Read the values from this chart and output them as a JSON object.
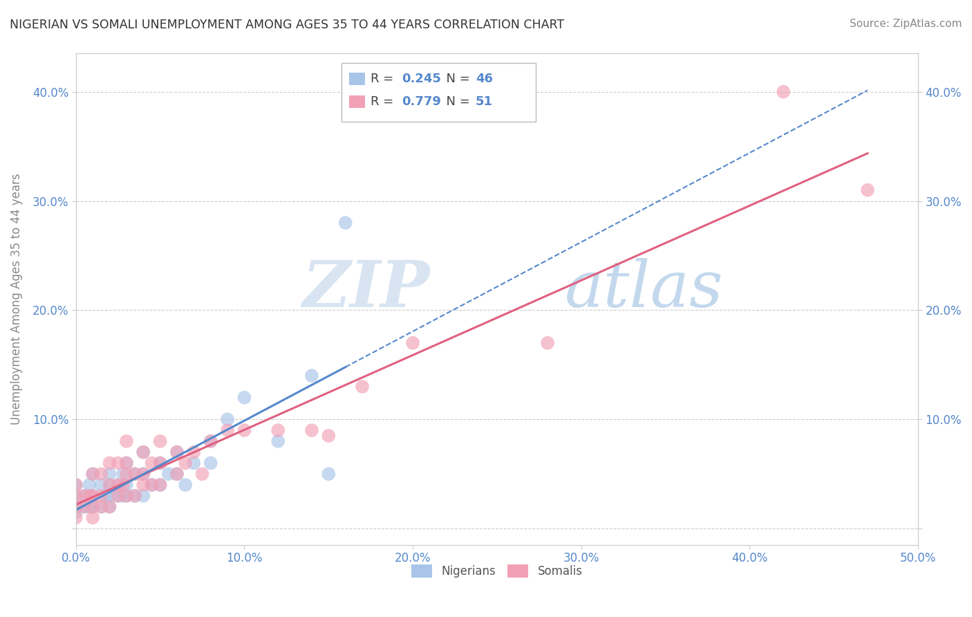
{
  "title": "NIGERIAN VS SOMALI UNEMPLOYMENT AMONG AGES 35 TO 44 YEARS CORRELATION CHART",
  "source": "Source: ZipAtlas.com",
  "ylabel": "Unemployment Among Ages 35 to 44 years",
  "xlim": [
    0.0,
    0.5
  ],
  "ylim": [
    -0.015,
    0.435
  ],
  "xticks": [
    0.0,
    0.1,
    0.2,
    0.3,
    0.4,
    0.5
  ],
  "xticklabels": [
    "0.0%",
    "10.0%",
    "20.0%",
    "30.0%",
    "40.0%",
    "50.0%"
  ],
  "yticks": [
    0.0,
    0.1,
    0.2,
    0.3,
    0.4
  ],
  "yticklabels_left": [
    "",
    "10.0%",
    "20.0%",
    "30.0%",
    "40.0%"
  ],
  "yticklabels_right": [
    "",
    "10.0%",
    "20.0%",
    "30.0%",
    "40.0%"
  ],
  "legend_r1": "R = 0.245",
  "legend_n1": "N = 46",
  "legend_r2": "R = 0.779",
  "legend_n2": "N = 51",
  "color_nigerian": "#a8c4e8",
  "color_somali": "#f2a0b5",
  "color_nigerian_line": "#5588cc",
  "color_somali_line": "#e06080",
  "nigerian_x": [
    0.0,
    0.0,
    0.0,
    0.0,
    0.005,
    0.005,
    0.008,
    0.008,
    0.01,
    0.01,
    0.01,
    0.015,
    0.015,
    0.018,
    0.02,
    0.02,
    0.02,
    0.02,
    0.025,
    0.025,
    0.028,
    0.028,
    0.03,
    0.03,
    0.03,
    0.035,
    0.035,
    0.04,
    0.04,
    0.04,
    0.045,
    0.05,
    0.05,
    0.055,
    0.06,
    0.06,
    0.065,
    0.07,
    0.08,
    0.08,
    0.09,
    0.1,
    0.12,
    0.14,
    0.15,
    0.16
  ],
  "nigerian_y": [
    0.015,
    0.02,
    0.03,
    0.04,
    0.02,
    0.03,
    0.02,
    0.04,
    0.02,
    0.03,
    0.05,
    0.02,
    0.04,
    0.03,
    0.02,
    0.03,
    0.04,
    0.05,
    0.03,
    0.04,
    0.03,
    0.05,
    0.03,
    0.04,
    0.06,
    0.03,
    0.05,
    0.03,
    0.05,
    0.07,
    0.04,
    0.04,
    0.06,
    0.05,
    0.05,
    0.07,
    0.04,
    0.06,
    0.06,
    0.08,
    0.1,
    0.12,
    0.08,
    0.14,
    0.05,
    0.28
  ],
  "somali_x": [
    0.0,
    0.0,
    0.0,
    0.0,
    0.005,
    0.005,
    0.008,
    0.01,
    0.01,
    0.01,
    0.01,
    0.015,
    0.015,
    0.015,
    0.02,
    0.02,
    0.02,
    0.025,
    0.025,
    0.025,
    0.028,
    0.03,
    0.03,
    0.03,
    0.03,
    0.035,
    0.035,
    0.04,
    0.04,
    0.04,
    0.045,
    0.045,
    0.05,
    0.05,
    0.05,
    0.06,
    0.06,
    0.065,
    0.07,
    0.075,
    0.08,
    0.09,
    0.1,
    0.12,
    0.14,
    0.15,
    0.17,
    0.2,
    0.28,
    0.42,
    0.47
  ],
  "somali_y": [
    0.01,
    0.02,
    0.03,
    0.04,
    0.02,
    0.03,
    0.03,
    0.01,
    0.02,
    0.03,
    0.05,
    0.02,
    0.03,
    0.05,
    0.02,
    0.04,
    0.06,
    0.03,
    0.04,
    0.06,
    0.04,
    0.03,
    0.05,
    0.06,
    0.08,
    0.03,
    0.05,
    0.04,
    0.05,
    0.07,
    0.04,
    0.06,
    0.04,
    0.06,
    0.08,
    0.05,
    0.07,
    0.06,
    0.07,
    0.05,
    0.08,
    0.09,
    0.09,
    0.09,
    0.09,
    0.085,
    0.13,
    0.17,
    0.17,
    0.4,
    0.31
  ],
  "watermark_zip": "ZIP",
  "watermark_atlas": "atlas",
  "background_color": "#ffffff",
  "grid_color": "#cccccc",
  "title_color": "#333333",
  "axis_color": "#5588cc",
  "tick_color": "#888888"
}
